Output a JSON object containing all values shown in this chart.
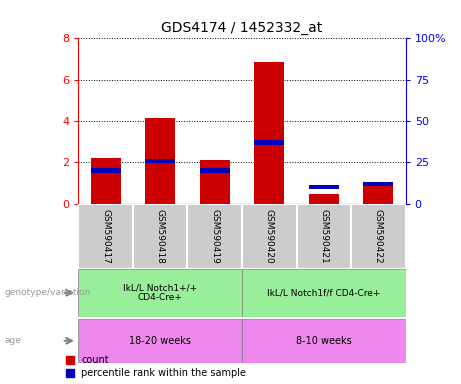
{
  "title": "GDS4174 / 1452332_at",
  "samples": [
    "GSM590417",
    "GSM590418",
    "GSM590419",
    "GSM590420",
    "GSM590421",
    "GSM590422"
  ],
  "count_values": [
    2.2,
    4.15,
    2.1,
    6.85,
    0.45,
    1.0
  ],
  "percentile_bar_height": [
    1.6,
    2.05,
    1.6,
    2.95,
    0.8,
    0.95
  ],
  "percentile_bar_size": 0.22,
  "ylim_left": [
    0,
    8
  ],
  "ylim_right": [
    0,
    100
  ],
  "yticks_left": [
    0,
    2,
    4,
    6,
    8
  ],
  "yticks_right": [
    0,
    25,
    50,
    75,
    100
  ],
  "ytick_labels_right": [
    "0",
    "25",
    "50",
    "75",
    "100%"
  ],
  "bar_color_red": "#cc0000",
  "bar_color_blue": "#0000bb",
  "bar_width": 0.55,
  "group1_label": "IkL/L Notch1+/+\nCD4-Cre+",
  "group2_label": "IkL/L Notch1f/f CD4-Cre+",
  "age1_label": "18-20 weeks",
  "age2_label": "8-10 weeks",
  "genotype_label": "genotype/variation",
  "age_label": "age",
  "legend_count": "count",
  "legend_percentile": "percentile rank within the sample",
  "group1_color": "#99ee99",
  "group2_color": "#99ee99",
  "age1_color": "#ee88ee",
  "age2_color": "#ee88ee",
  "sample_bg_color": "#cccccc",
  "left_label_color": "#999999"
}
